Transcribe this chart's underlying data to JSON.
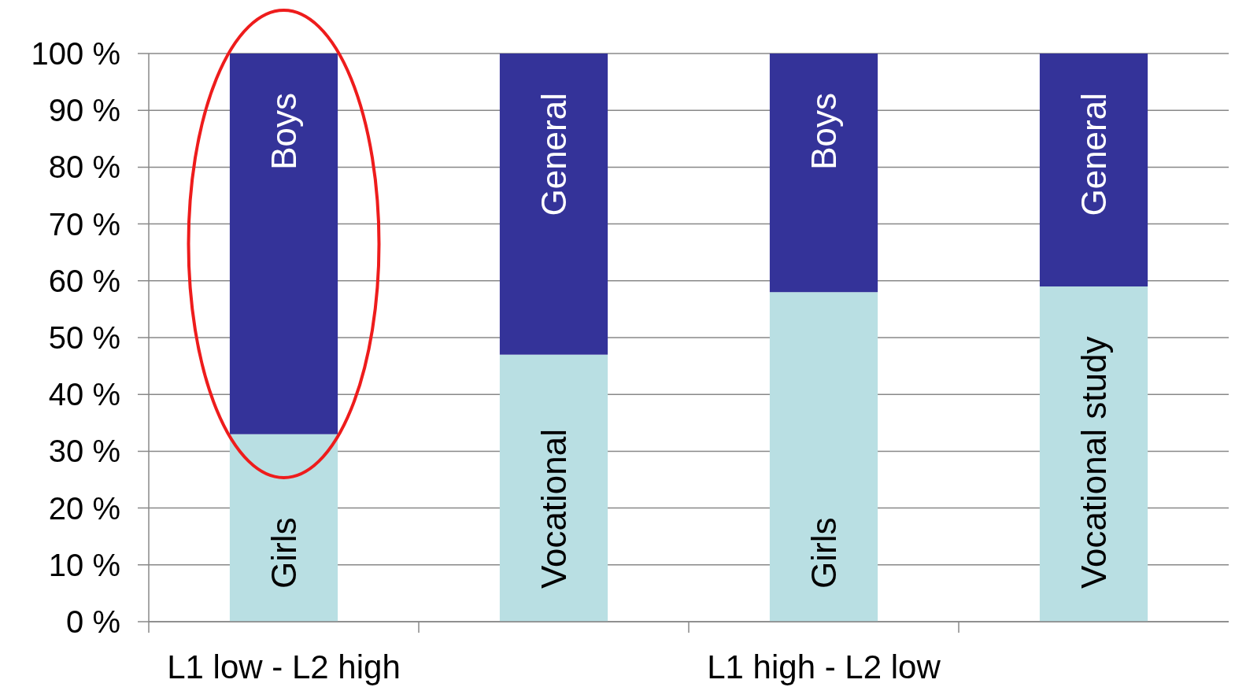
{
  "chart_data": {
    "type": "bar",
    "stacked": true,
    "categories": [
      "L1 low - L2 high",
      null,
      "L1 high - L2 low",
      null
    ],
    "series": [
      {
        "color": "#b9dfe3",
        "values": [
          33,
          47,
          58,
          59
        ],
        "value_labels": [
          "Girls",
          "Vocational",
          "Girls",
          "Vocational study"
        ]
      },
      {
        "color": "#343399",
        "values": [
          67,
          53,
          42,
          41
        ],
        "value_labels": [
          "Boys",
          "General",
          "Boys",
          "General"
        ]
      }
    ],
    "ylim": [
      0,
      100
    ],
    "yticks": [
      {
        "value": 0,
        "label": "0 %"
      },
      {
        "value": 10,
        "label": "10 %"
      },
      {
        "value": 20,
        "label": "20 %"
      },
      {
        "value": 30,
        "label": "30 %"
      },
      {
        "value": 40,
        "label": "40 %"
      },
      {
        "value": 50,
        "label": "50 %"
      },
      {
        "value": 60,
        "label": "60 %"
      },
      {
        "value": 70,
        "label": "70 %"
      },
      {
        "value": 80,
        "label": "80 %"
      },
      {
        "value": 90,
        "label": "90 %"
      },
      {
        "value": 100,
        "label": "100 %"
      }
    ],
    "grid": "y"
  }
}
